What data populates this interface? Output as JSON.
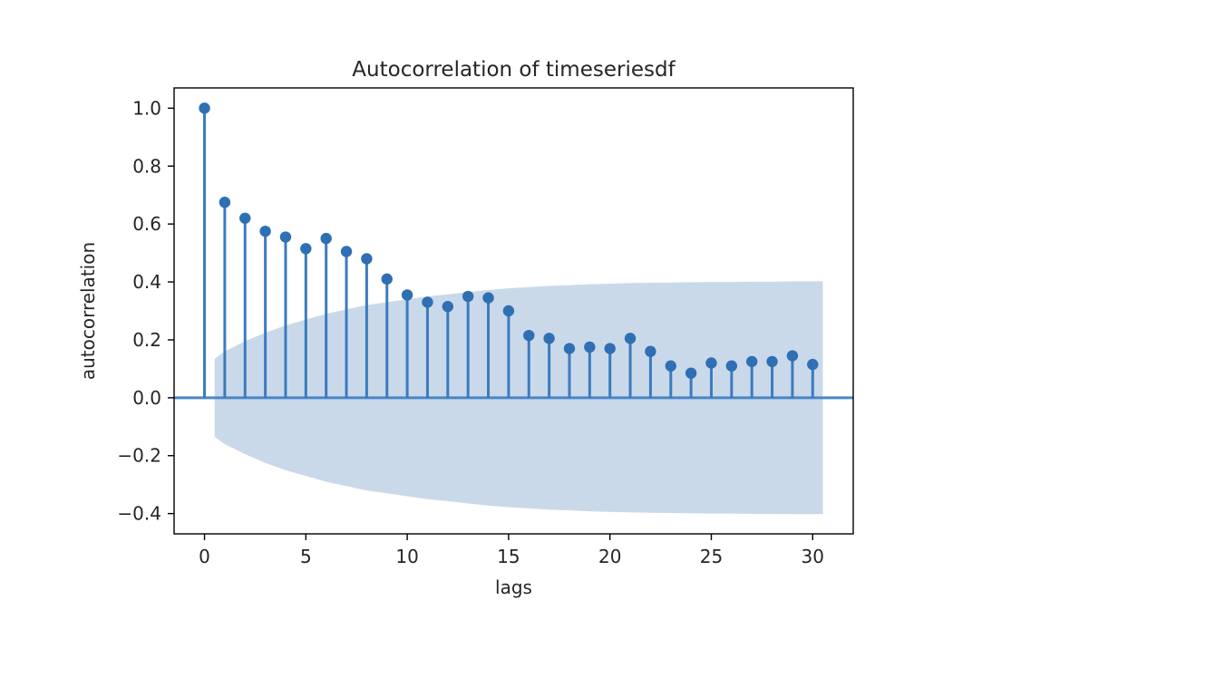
{
  "chart_data": {
    "type": "stem",
    "title": "Autocorrelation of timeseriesdf",
    "xlabel": "lags",
    "ylabel": "autocorrelation",
    "xlim": [
      -1.5,
      32
    ],
    "ylim": [
      -0.47,
      1.07
    ],
    "xticks": [
      0,
      5,
      10,
      15,
      20,
      25,
      30
    ],
    "xtick_labels": [
      "0",
      "5",
      "10",
      "15",
      "20",
      "25",
      "30"
    ],
    "yticks": [
      -0.4,
      -0.2,
      0.0,
      0.2,
      0.4,
      0.6,
      0.8,
      1.0
    ],
    "ytick_labels": [
      "−0.4",
      "−0.2",
      "0.0",
      "0.2",
      "0.4",
      "0.6",
      "0.8",
      "1.0"
    ],
    "grid": false,
    "lags": [
      0,
      1,
      2,
      3,
      4,
      5,
      6,
      7,
      8,
      9,
      10,
      11,
      12,
      13,
      14,
      15,
      16,
      17,
      18,
      19,
      20,
      21,
      22,
      23,
      24,
      25,
      26,
      27,
      28,
      29,
      30
    ],
    "values": [
      1.0,
      0.675,
      0.62,
      0.575,
      0.555,
      0.515,
      0.55,
      0.505,
      0.48,
      0.41,
      0.355,
      0.33,
      0.315,
      0.35,
      0.345,
      0.3,
      0.215,
      0.205,
      0.17,
      0.175,
      0.17,
      0.205,
      0.16,
      0.11,
      0.085,
      0.12,
      0.11,
      0.125,
      0.125,
      0.145,
      0.115
    ],
    "confidence_band": {
      "lags": [
        0.5,
        1,
        2,
        3,
        4,
        5,
        6,
        7,
        8,
        9,
        10,
        11,
        12,
        13,
        14,
        15,
        16,
        17,
        18,
        19,
        20,
        21,
        22,
        23,
        24,
        25,
        26,
        27,
        28,
        29,
        30.5
      ],
      "upper": [
        0.135,
        0.16,
        0.195,
        0.225,
        0.25,
        0.27,
        0.29,
        0.305,
        0.32,
        0.33,
        0.34,
        0.35,
        0.357,
        0.365,
        0.372,
        0.378,
        0.382,
        0.386,
        0.389,
        0.392,
        0.394,
        0.396,
        0.397,
        0.398,
        0.399,
        0.4,
        0.4,
        0.401,
        0.401,
        0.402,
        0.402
      ],
      "lower": [
        -0.135,
        -0.16,
        -0.195,
        -0.225,
        -0.25,
        -0.27,
        -0.29,
        -0.305,
        -0.32,
        -0.33,
        -0.34,
        -0.35,
        -0.357,
        -0.365,
        -0.372,
        -0.378,
        -0.382,
        -0.386,
        -0.389,
        -0.392,
        -0.394,
        -0.396,
        -0.397,
        -0.398,
        -0.399,
        -0.4,
        -0.4,
        -0.401,
        -0.401,
        -0.402,
        -0.402
      ]
    },
    "colors": {
      "stem": "#3b7bbf",
      "marker": "#2f6fb3",
      "baseline": "#4a86c5",
      "band": "#c9d9ea"
    }
  }
}
